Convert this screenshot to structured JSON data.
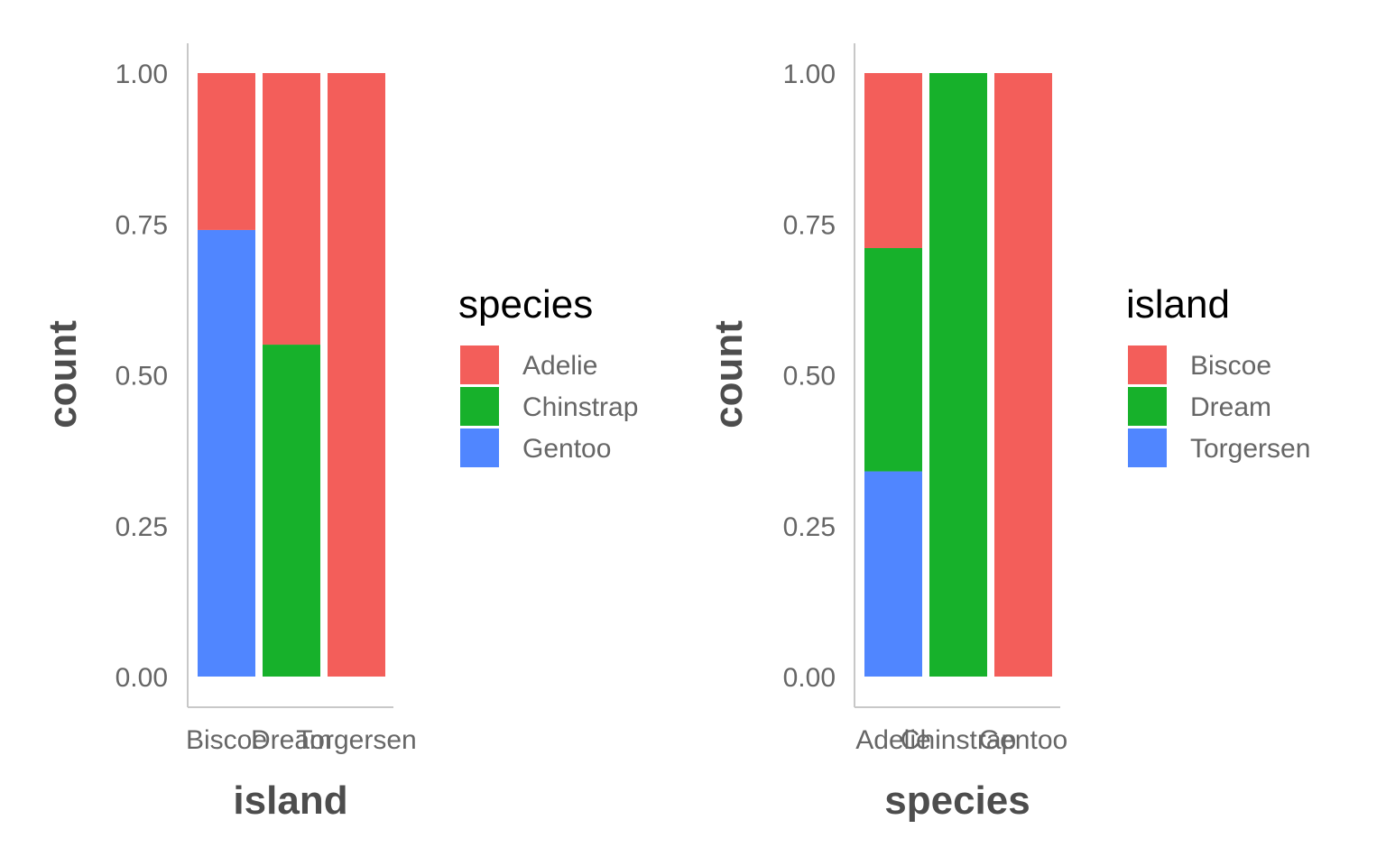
{
  "colors": {
    "red": "#f35e5a",
    "green": "#17b12b",
    "blue": "#5086ff"
  },
  "chart_data": [
    {
      "type": "bar",
      "stacked": true,
      "position": "fill",
      "xlabel": "island",
      "ylabel": "count",
      "ylim": [
        0,
        1
      ],
      "yticks": [
        "0.00",
        "0.25",
        "0.50",
        "0.75",
        "1.00"
      ],
      "categories": [
        "Biscoe",
        "Dream",
        "Torgersen"
      ],
      "legend_title": "species",
      "legend_placement": "right",
      "series": [
        {
          "name": "Adelie",
          "color": "#f35e5a",
          "values": [
            0.26,
            0.45,
            1.0
          ]
        },
        {
          "name": "Chinstrap",
          "color": "#17b12b",
          "values": [
            0.0,
            0.55,
            0.0
          ]
        },
        {
          "name": "Gentoo",
          "color": "#5086ff",
          "values": [
            0.74,
            0.0,
            0.0
          ]
        }
      ]
    },
    {
      "type": "bar",
      "stacked": true,
      "position": "fill",
      "xlabel": "species",
      "ylabel": "count",
      "ylim": [
        0,
        1
      ],
      "yticks": [
        "0.00",
        "0.25",
        "0.50",
        "0.75",
        "1.00"
      ],
      "categories": [
        "Adelie",
        "Chinstrap",
        "Gentoo"
      ],
      "legend_title": "island",
      "legend_placement": "right",
      "series": [
        {
          "name": "Biscoe",
          "color": "#f35e5a",
          "values": [
            0.29,
            0.0,
            1.0
          ]
        },
        {
          "name": "Dream",
          "color": "#17b12b",
          "values": [
            0.37,
            1.0,
            0.0
          ]
        },
        {
          "name": "Torgersen",
          "color": "#5086ff",
          "values": [
            0.34,
            0.0,
            0.0
          ]
        }
      ]
    }
  ]
}
